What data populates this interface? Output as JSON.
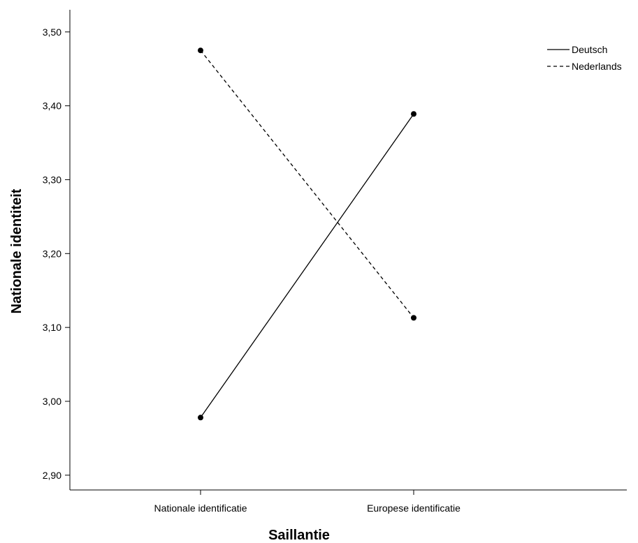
{
  "chart_data": {
    "type": "line",
    "title": "",
    "xlabel": "Saillantie",
    "ylabel": "Nationale identiteit",
    "categories": [
      "Nationale identificatie",
      "Europese identificatie"
    ],
    "ylim": [
      2.88,
      3.53
    ],
    "yticks": [
      2.9,
      3.0,
      3.1,
      3.2,
      3.3,
      3.4,
      3.5
    ],
    "ytick_labels": [
      "2,90",
      "3,00",
      "3,10",
      "3,20",
      "3,30",
      "3,40",
      "3,50"
    ],
    "grid": false,
    "legend_position": "top-right",
    "series": [
      {
        "name": "Deutsch",
        "values": [
          2.978,
          3.389
        ],
        "line_style": "solid",
        "color": "#000000"
      },
      {
        "name": "Nederlands",
        "values": [
          3.475,
          3.113
        ],
        "line_style": "dashed",
        "color": "#000000"
      }
    ]
  }
}
